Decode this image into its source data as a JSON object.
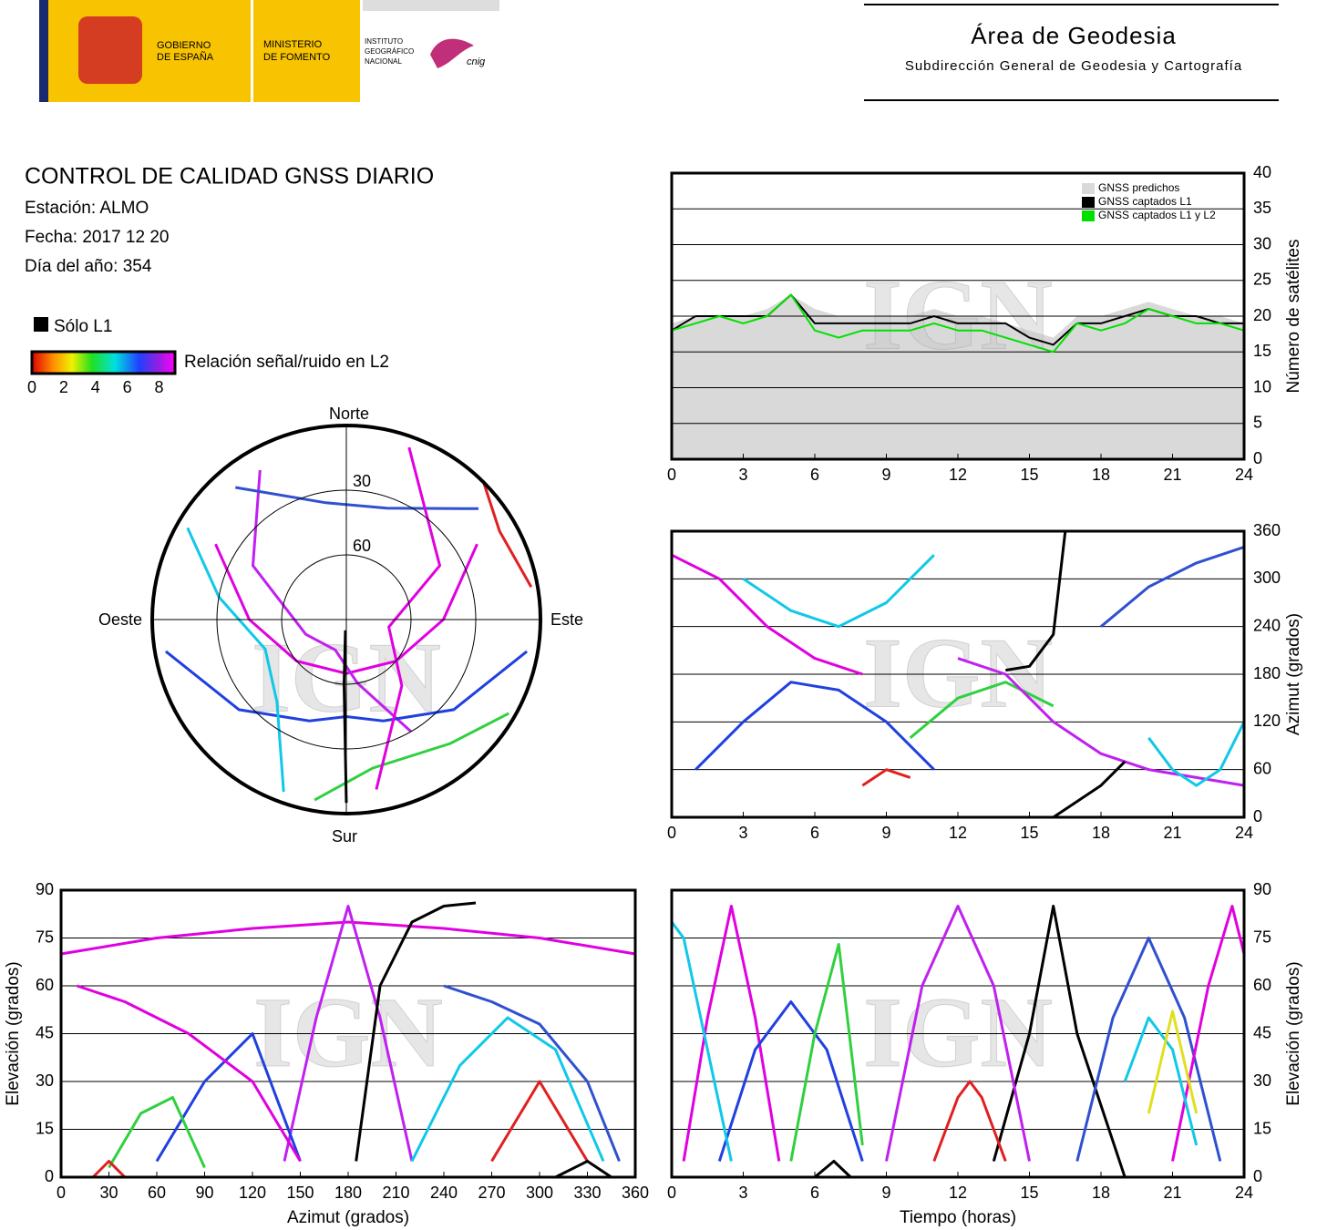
{
  "header": {
    "gov_line1": "GOBIERNO",
    "gov_line2": "DE ESPAÑA",
    "ministry_line1": "MINISTERIO",
    "ministry_line2": "DE FOMENTO",
    "ign_line1": "INSTITUTO",
    "ign_line2": "GEOGRÁFICO",
    "ign_line3": "NACIONAL",
    "cnig": "cnig",
    "area": "Área de Geodesia",
    "subdireccion": "Subdirección General de Geodesia y Cartografía"
  },
  "report": {
    "title": "CONTROL DE CALIDAD GNSS DIARIO",
    "station": "Estación: ALMO",
    "date": "Fecha: 2017 12 20",
    "doy": "Día del año: 354",
    "solo_l1": "Sólo L1",
    "snr_legend": "Relación señal/ruido en L2",
    "snr_lim": [
      0,
      9
    ],
    "snr_ticks": [
      0,
      2,
      4,
      6,
      8
    ],
    "watermark": "IGN"
  },
  "chart_data": [
    {
      "type": "polar",
      "directions": {
        "north": "Norte",
        "east": "Este",
        "south": "Sur",
        "west": "Oeste"
      },
      "elevation_lim": [
        0,
        90
      ],
      "elevation_ticks": [
        30,
        60
      ],
      "series": [
        {
          "color": "#e000e0",
          "azimuth": [
            60,
            90,
            130,
            180,
            230,
            270,
            300
          ],
          "elevation": [
            20,
            45,
            60,
            65,
            60,
            45,
            20
          ]
        },
        {
          "color": "#c020f0",
          "azimuth": [
            330,
            300,
            250,
            200,
            170,
            150
          ],
          "elevation": [
            10,
            40,
            70,
            75,
            60,
            30
          ]
        },
        {
          "color": "#2040e0",
          "azimuth": [
            100,
            130,
            160,
            180,
            200,
            230,
            260
          ],
          "elevation": [
            5,
            25,
            40,
            45,
            40,
            25,
            5
          ]
        },
        {
          "color": "#10c8e8",
          "azimuth": [
            300,
            280,
            250,
            220,
            200
          ],
          "elevation": [
            5,
            30,
            50,
            40,
            5
          ]
        },
        {
          "color": "#30d040",
          "azimuth": [
            120,
            140,
            170,
            190
          ],
          "elevation": [
            3,
            15,
            20,
            5
          ]
        },
        {
          "color": "#e02020",
          "azimuth": [
            45,
            60,
            80
          ],
          "elevation": [
            0,
            8,
            3
          ]
        },
        {
          "color": "#3050d0",
          "azimuth": [
            320,
            350,
            20,
            50
          ],
          "elevation": [
            10,
            35,
            35,
            10
          ]
        },
        {
          "color": "#000000",
          "azimuth": [
            180,
            182,
            185
          ],
          "elevation": [
            5,
            60,
            85
          ]
        },
        {
          "color": "#e000e0",
          "azimuth": [
            20,
            60,
            100,
            140,
            170
          ],
          "elevation": [
            5,
            40,
            70,
            50,
            10
          ]
        }
      ]
    },
    {
      "type": "line",
      "y_label": "Número de satélites",
      "xlim": [
        0,
        24
      ],
      "xticks": [
        0,
        3,
        6,
        9,
        12,
        15,
        18,
        21,
        24
      ],
      "ylim": [
        0,
        40
      ],
      "yticks": [
        0,
        5,
        10,
        15,
        20,
        25,
        30,
        35,
        40
      ],
      "grid": true,
      "legend": "upper right",
      "x": [
        0,
        1,
        2,
        3,
        4,
        5,
        6,
        7,
        8,
        9,
        10,
        11,
        12,
        13,
        14,
        15,
        16,
        17,
        18,
        19,
        20,
        21,
        22,
        23,
        24
      ],
      "series": [
        {
          "name": "GNSS predichos",
          "color": "#d9d9d9",
          "fill": true,
          "values": [
            19,
            20,
            20,
            20,
            21,
            23,
            21,
            20,
            20,
            20,
            20,
            21,
            20,
            20,
            19,
            18,
            17,
            20,
            20,
            21,
            22,
            21,
            20,
            20,
            19
          ]
        },
        {
          "name": "GNSS captados L1",
          "color": "#000000",
          "values": [
            18,
            20,
            20,
            20,
            20,
            23,
            19,
            19,
            19,
            19,
            19,
            20,
            19,
            19,
            19,
            17,
            16,
            19,
            19,
            20,
            21,
            20,
            20,
            19,
            19
          ]
        },
        {
          "name": "GNSS captados L1 y L2",
          "color": "#00e000",
          "values": [
            18,
            19,
            20,
            19,
            20,
            23,
            18,
            17,
            18,
            18,
            18,
            19,
            18,
            18,
            17,
            16,
            15,
            19,
            18,
            19,
            21,
            20,
            19,
            19,
            18
          ]
        }
      ]
    },
    {
      "type": "line",
      "y_label": "Azimut (grados)",
      "xlim": [
        0,
        24
      ],
      "xticks": [
        0,
        3,
        6,
        9,
        12,
        15,
        18,
        21,
        24
      ],
      "ylim": [
        0,
        360
      ],
      "yticks": [
        0,
        60,
        120,
        180,
        240,
        300,
        360
      ],
      "grid": true,
      "series": [
        {
          "color": "#e000e0",
          "x": [
            0,
            2,
            4,
            6,
            8
          ],
          "values": [
            330,
            300,
            240,
            200,
            180
          ]
        },
        {
          "color": "#2040e0",
          "x": [
            1,
            3,
            5,
            7,
            9,
            11
          ],
          "values": [
            60,
            120,
            170,
            160,
            120,
            60
          ]
        },
        {
          "color": "#10c8e8",
          "x": [
            3,
            5,
            7,
            9,
            11
          ],
          "values": [
            300,
            260,
            240,
            270,
            330
          ]
        },
        {
          "color": "#30d040",
          "x": [
            10,
            12,
            14,
            16
          ],
          "values": [
            100,
            150,
            170,
            140
          ]
        },
        {
          "color": "#e02020",
          "x": [
            8,
            9,
            10
          ],
          "values": [
            40,
            60,
            50
          ]
        },
        {
          "color": "#c020f0",
          "x": [
            12,
            14,
            16,
            18,
            20,
            22,
            24
          ],
          "values": [
            200,
            180,
            120,
            80,
            60,
            50,
            40
          ]
        },
        {
          "color": "#000000",
          "x": [
            16,
            17,
            18,
            19
          ],
          "values": [
            0,
            20,
            40,
            70
          ]
        },
        {
          "color": "#000000",
          "x": [
            14,
            15,
            16,
            16.5
          ],
          "values": [
            185,
            190,
            230,
            360
          ]
        },
        {
          "color": "#3050d0",
          "x": [
            18,
            20,
            22,
            24
          ],
          "values": [
            240,
            290,
            320,
            340
          ]
        },
        {
          "color": "#10c8e8",
          "x": [
            20,
            21,
            22,
            23,
            24
          ],
          "values": [
            100,
            60,
            40,
            60,
            120
          ]
        }
      ]
    },
    {
      "type": "line",
      "x_label": "Azimut (grados)",
      "y_label": "Elevación (grados)",
      "xlim": [
        0,
        360
      ],
      "xticks": [
        0,
        30,
        60,
        90,
        120,
        150,
        180,
        210,
        240,
        270,
        300,
        330,
        360
      ],
      "ylim": [
        0,
        90
      ],
      "yticks": [
        0,
        15,
        30,
        45,
        60,
        75,
        90
      ],
      "grid": true,
      "series": [
        {
          "color": "#e000e0",
          "x": [
            0,
            60,
            120,
            180,
            240,
            300,
            360
          ],
          "values": [
            70,
            75,
            78,
            80,
            78,
            75,
            70
          ]
        },
        {
          "color": "#c020f0",
          "x": [
            140,
            160,
            180,
            200,
            220
          ],
          "values": [
            5,
            50,
            85,
            50,
            5
          ]
        },
        {
          "color": "#2040e0",
          "x": [
            60,
            90,
            120,
            150
          ],
          "values": [
            5,
            30,
            45,
            5
          ]
        },
        {
          "color": "#10c8e8",
          "x": [
            220,
            250,
            280,
            310,
            340
          ],
          "values": [
            5,
            35,
            50,
            40,
            5
          ]
        },
        {
          "color": "#30d040",
          "x": [
            30,
            50,
            70,
            90
          ],
          "values": [
            3,
            20,
            25,
            3
          ]
        },
        {
          "color": "#e02020",
          "x": [
            20,
            30,
            40
          ],
          "values": [
            0,
            5,
            0
          ]
        },
        {
          "color": "#e02020",
          "x": [
            270,
            300,
            330
          ],
          "values": [
            5,
            30,
            5
          ]
        },
        {
          "color": "#000000",
          "x": [
            185,
            200,
            220,
            240,
            260
          ],
          "values": [
            5,
            60,
            80,
            85,
            86
          ]
        },
        {
          "color": "#000000",
          "x": [
            310,
            330,
            345
          ],
          "values": [
            0,
            5,
            0
          ]
        },
        {
          "color": "#3050d0",
          "x": [
            240,
            270,
            300,
            330,
            350
          ],
          "values": [
            60,
            55,
            48,
            30,
            5
          ]
        },
        {
          "color": "#e000e0",
          "x": [
            10,
            40,
            80,
            120,
            150
          ],
          "values": [
            60,
            55,
            45,
            30,
            5
          ]
        }
      ]
    },
    {
      "type": "line",
      "x_label": "Tiempo (horas)",
      "y_label": "Elevación (grados)",
      "xlim": [
        0,
        24
      ],
      "xticks": [
        0,
        3,
        6,
        9,
        12,
        15,
        18,
        21,
        24
      ],
      "ylim": [
        0,
        90
      ],
      "yticks": [
        0,
        15,
        30,
        45,
        60,
        75,
        90
      ],
      "grid": true,
      "series": [
        {
          "color": "#e000e0",
          "x": [
            0.5,
            1.5,
            2.5,
            3.5,
            4.5
          ],
          "values": [
            5,
            50,
            85,
            50,
            5
          ]
        },
        {
          "color": "#2040e0",
          "x": [
            2,
            3.5,
            5,
            6.5,
            8
          ],
          "values": [
            5,
            40,
            55,
            40,
            5
          ]
        },
        {
          "color": "#10c8e8",
          "x": [
            0,
            0.5,
            1.5,
            2.5
          ],
          "values": [
            80,
            75,
            40,
            5
          ]
        },
        {
          "color": "#30d040",
          "x": [
            5,
            6,
            7,
            8
          ],
          "values": [
            5,
            45,
            73,
            10
          ]
        },
        {
          "color": "#000000",
          "x": [
            6,
            6.8,
            7.5
          ],
          "values": [
            0,
            5,
            0
          ]
        },
        {
          "color": "#000000",
          "x": [
            13.5,
            15,
            16,
            17,
            19
          ],
          "values": [
            5,
            45,
            85,
            45,
            0
          ]
        },
        {
          "color": "#c020f0",
          "x": [
            9,
            10.5,
            12,
            13.5,
            15
          ],
          "values": [
            5,
            60,
            85,
            60,
            5
          ]
        },
        {
          "color": "#e02020",
          "x": [
            11,
            12,
            12.5,
            13,
            14
          ],
          "values": [
            5,
            25,
            30,
            25,
            5
          ]
        },
        {
          "color": "#3050d0",
          "x": [
            17,
            18.5,
            20,
            21.5,
            23
          ],
          "values": [
            5,
            50,
            75,
            50,
            5
          ]
        },
        {
          "color": "#e000e0",
          "x": [
            21,
            22.5,
            23.5,
            24
          ],
          "values": [
            5,
            60,
            85,
            70
          ]
        },
        {
          "color": "#10c8e8",
          "x": [
            19,
            20,
            21,
            22
          ],
          "values": [
            30,
            50,
            40,
            10
          ]
        },
        {
          "color": "#e0e020",
          "x": [
            20,
            21,
            22
          ],
          "values": [
            20,
            52,
            20
          ]
        }
      ]
    }
  ]
}
